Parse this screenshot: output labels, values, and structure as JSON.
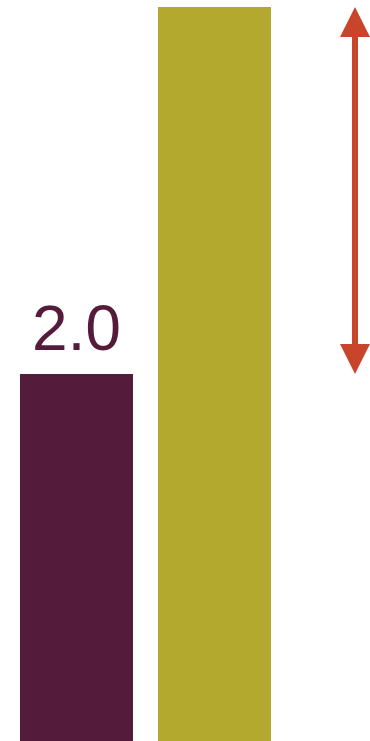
{
  "chart_data": {
    "type": "bar",
    "series": [
      {
        "value": 2.0,
        "color": "#541b3b",
        "label": "2.0"
      },
      {
        "value": 4.0,
        "color": "#b4a92f",
        "label": ""
      }
    ],
    "annotation": {
      "type": "double-arrow",
      "from_value": 4.0,
      "to_value": 2.0,
      "color": "#c8442a"
    },
    "ylim": [
      0,
      4.0
    ],
    "grid": false
  }
}
